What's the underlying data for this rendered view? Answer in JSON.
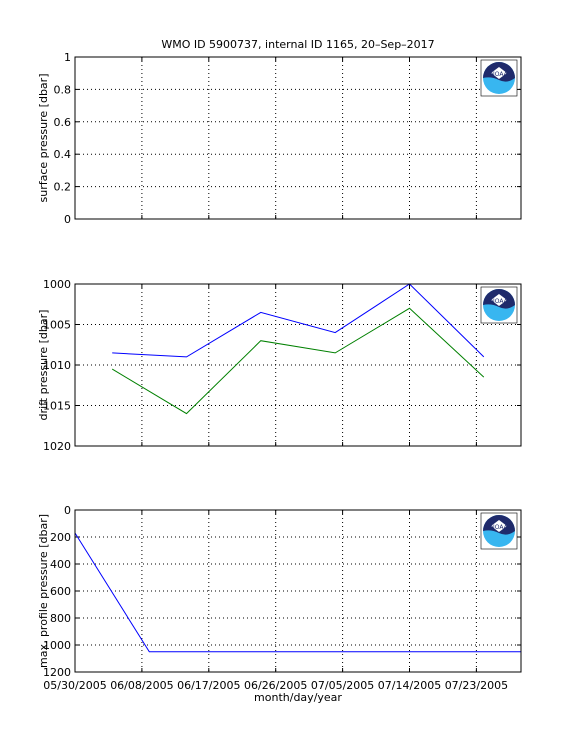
{
  "title": "WMO ID 5900737, internal ID 1165, 20–Sep–2017",
  "xlabel": "month/day/year",
  "x_tick_labels": [
    "05/30/2005",
    "06/08/2005",
    "06/17/2005",
    "06/26/2005",
    "07/05/2005",
    "07/14/2005",
    "07/23/2005"
  ],
  "logo": {
    "name": "noaa-logo",
    "text": "NOAA",
    "colors": {
      "dark": "#1f2a6b",
      "light": "#38b6f0"
    }
  },
  "chart_data": [
    {
      "type": "line",
      "title": "WMO ID 5900737, internal ID 1165, 20–Sep–2017",
      "ylabel": "surface pressure [dbar]",
      "ylim": [
        0,
        1
      ],
      "y_ticks": [
        0,
        0.2,
        0.4,
        0.6,
        0.8,
        1
      ],
      "y_tick_labels": [
        "0",
        "0.2",
        "0.4",
        "0.6",
        "0.8",
        "1"
      ],
      "y_reversed": false,
      "xlim": [
        "2005-05-30",
        "2005-07-29"
      ],
      "x_ticks": [
        "2005-05-30",
        "2005-06-08",
        "2005-06-17",
        "2005-06-26",
        "2005-07-05",
        "2005-07-14",
        "2005-07-23"
      ],
      "grid": true,
      "series": []
    },
    {
      "type": "line",
      "xlabel": "",
      "ylabel": "drift pressure [dbar]",
      "ylim": [
        1000,
        1020
      ],
      "y_ticks": [
        1000,
        1005,
        1010,
        1015,
        1020
      ],
      "y_tick_labels": [
        "1000",
        "1005",
        "1010",
        "1015",
        "1020"
      ],
      "y_reversed": true,
      "xlim": [
        "2005-05-30",
        "2005-07-29"
      ],
      "x_ticks": [
        "2005-05-30",
        "2005-06-08",
        "2005-06-17",
        "2005-06-26",
        "2005-07-05",
        "2005-07-14",
        "2005-07-23"
      ],
      "grid": true,
      "series": [
        {
          "color": "#0000ff",
          "x": [
            "2005-06-04",
            "2005-06-14",
            "2005-06-24",
            "2005-07-04",
            "2005-07-14",
            "2005-07-24"
          ],
          "values": [
            1008.5,
            1009,
            1003.5,
            1006,
            1000,
            1009
          ]
        },
        {
          "color": "#008000",
          "x": [
            "2005-06-04",
            "2005-06-14",
            "2005-06-24",
            "2005-07-04",
            "2005-07-14",
            "2005-07-24"
          ],
          "values": [
            1010.5,
            1016,
            1007,
            1008.5,
            1003,
            1011.5
          ]
        }
      ]
    },
    {
      "type": "line",
      "xlabel": "month/day/year",
      "ylabel": "max. profile pressure [dbar]",
      "ylim": [
        0,
        1200
      ],
      "y_ticks": [
        0,
        200,
        400,
        600,
        800,
        1000,
        1200
      ],
      "y_tick_labels": [
        "0",
        "200",
        "400",
        "600",
        "800",
        "1000",
        "1200"
      ],
      "y_reversed": true,
      "xlim": [
        "2005-05-30",
        "2005-07-29"
      ],
      "x_ticks": [
        "2005-05-30",
        "2005-06-08",
        "2005-06-17",
        "2005-06-26",
        "2005-07-05",
        "2005-07-14",
        "2005-07-23"
      ],
      "grid": true,
      "series": [
        {
          "color": "#0000ff",
          "x": [
            "2005-05-30",
            "2005-06-09",
            "2005-07-29"
          ],
          "values": [
            170,
            1050,
            1050
          ]
        }
      ]
    }
  ]
}
